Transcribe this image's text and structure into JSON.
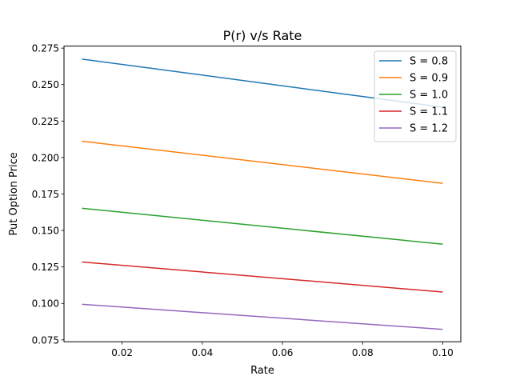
{
  "chart_data": {
    "type": "line",
    "title": "P(r) v/s Rate",
    "xlabel": "Rate",
    "ylabel": "Put Option Price",
    "xlim": [
      0.0055,
      0.1045
    ],
    "ylim": [
      0.0737,
      0.2764
    ],
    "x": [
      0.01,
      0.1
    ],
    "xticks": [
      0.02,
      0.04,
      0.06,
      0.08,
      0.1
    ],
    "xtick_labels": [
      "0.02",
      "0.04",
      "0.06",
      "0.08",
      "0.10"
    ],
    "yticks": [
      0.075,
      0.1,
      0.125,
      0.15,
      0.175,
      0.2,
      0.225,
      0.25,
      0.275
    ],
    "ytick_labels": [
      "0.075",
      "0.100",
      "0.125",
      "0.150",
      "0.175",
      "0.200",
      "0.225",
      "0.250",
      "0.275"
    ],
    "grid": false,
    "legend_position": "top-right",
    "series": [
      {
        "name": "S = 0.8",
        "color": "#1f77b4",
        "values": [
          0.2675,
          0.2345
        ]
      },
      {
        "name": "S = 0.9",
        "color": "#ff7f0e",
        "values": [
          0.2112,
          0.1823
        ]
      },
      {
        "name": "S = 1.0",
        "color": "#2ca02c",
        "values": [
          0.1652,
          0.1406
        ]
      },
      {
        "name": "S = 1.1",
        "color": "#d62728",
        "values": [
          0.1284,
          0.1078
        ]
      },
      {
        "name": "S = 1.2",
        "color": "#9467bd",
        "values": [
          0.0994,
          0.0822
        ]
      }
    ]
  }
}
